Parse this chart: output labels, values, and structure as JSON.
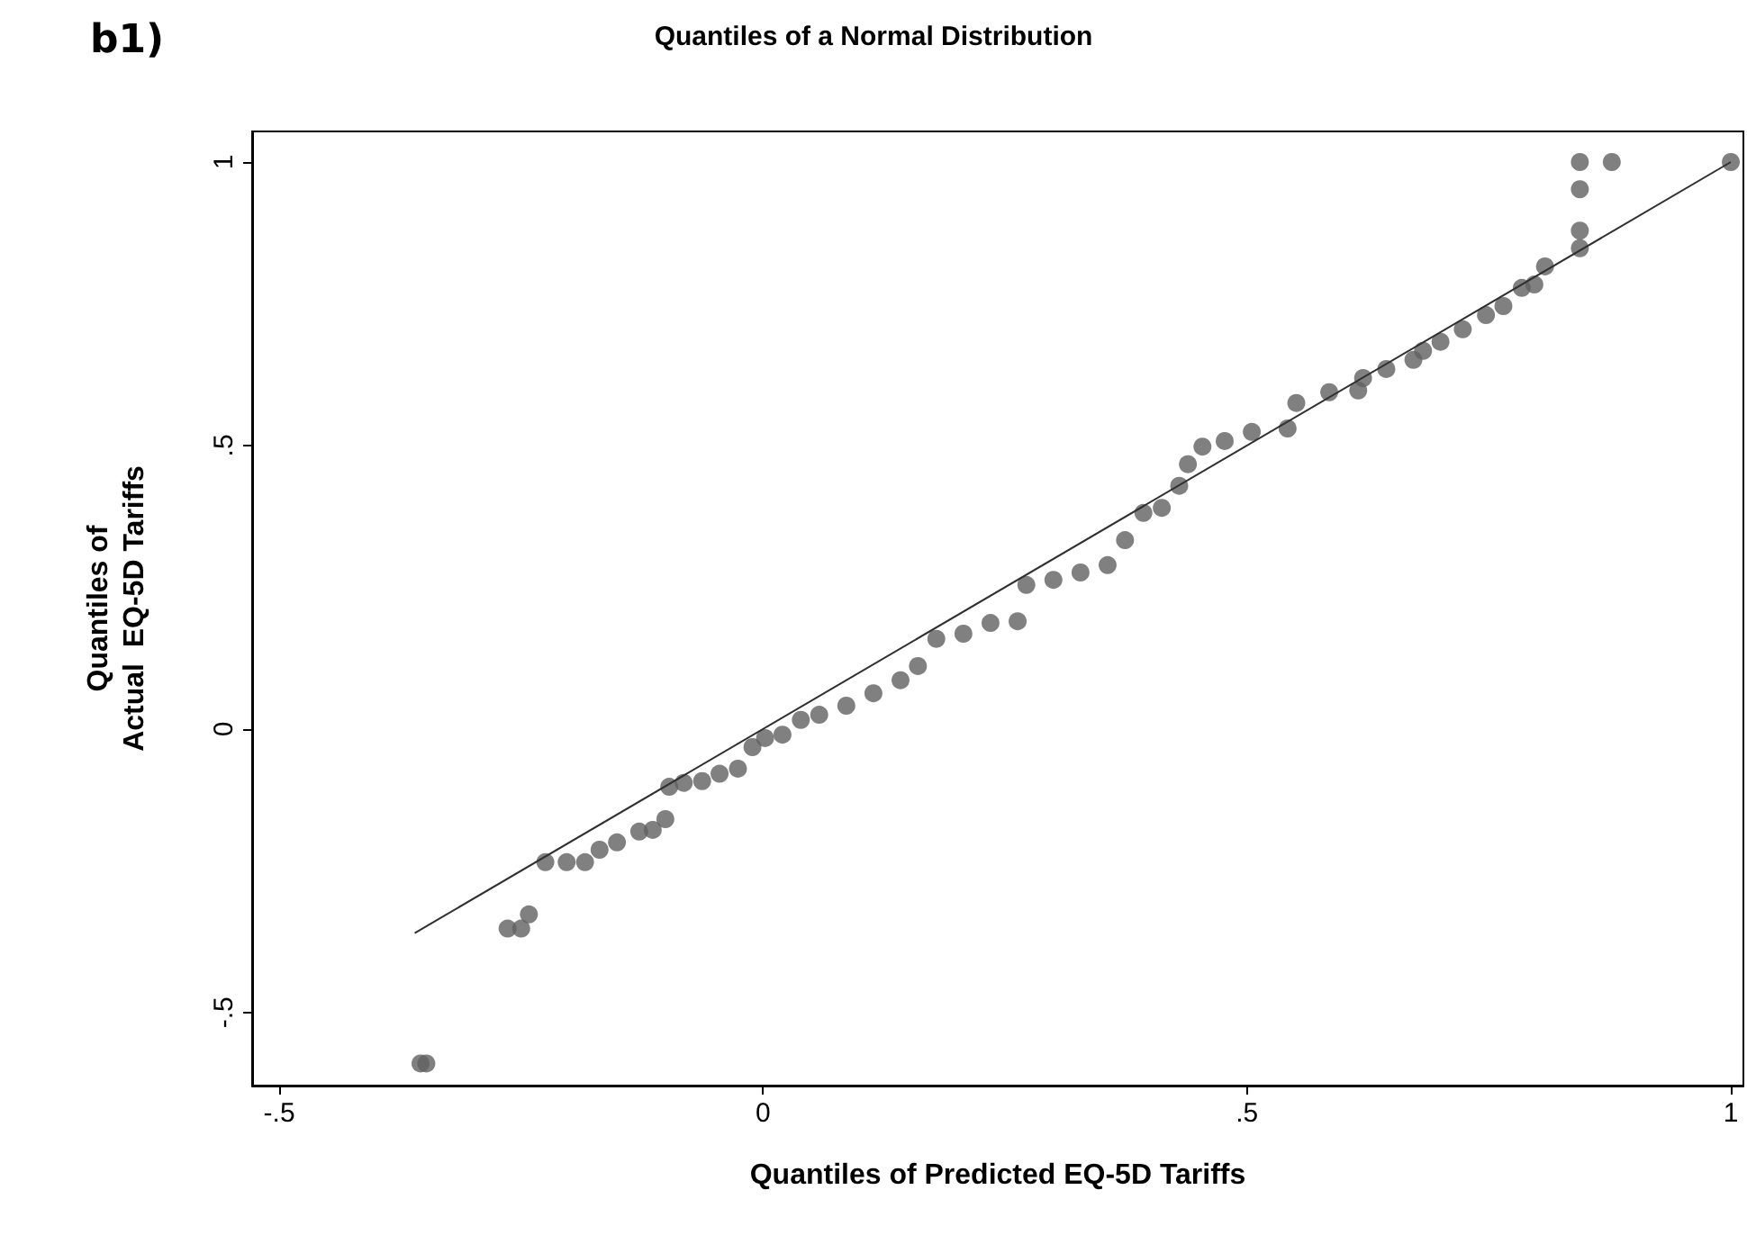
{
  "chart_data": {
    "type": "scatter",
    "title": "Quantiles of a Normal Distribution",
    "xlabel": "Quantiles of Predicted EQ-5D Tariffs",
    "ylabel": "Quantiles of\nActual  EQ-5D Tariffs",
    "annotations": [
      "b1)"
    ],
    "xlim": [
      -0.528,
      1.013
    ],
    "ylim": [
      -0.629,
      1.054
    ],
    "xticks": [
      {
        "value": -0.5,
        "label": "-.5"
      },
      0,
      {
        "value": 0.5,
        "label": ".5"
      },
      1
    ],
    "yticks": [
      {
        "value": -0.5,
        "label": "-.5"
      },
      0,
      {
        "value": 0.5,
        "label": ".5"
      },
      1
    ],
    "grid": false,
    "marker": "circle",
    "series": [
      {
        "color": "#606060",
        "x": [
          -0.354,
          -0.348,
          -0.264,
          -0.25,
          -0.242,
          -0.225,
          -0.203,
          -0.184,
          -0.169,
          -0.151,
          -0.128,
          -0.114,
          -0.101,
          -0.097,
          -0.082,
          -0.063,
          -0.045,
          -0.026,
          -0.011,
          0.002,
          0.02,
          0.039,
          0.058,
          0.086,
          0.114,
          0.142,
          0.16,
          0.179,
          0.207,
          0.235,
          0.263,
          0.272,
          0.3,
          0.328,
          0.356,
          0.374,
          0.393,
          0.412,
          0.43,
          0.439,
          0.454,
          0.477,
          0.505,
          0.542,
          0.551,
          0.585,
          0.615,
          0.62,
          0.644,
          0.672,
          0.682,
          0.7,
          0.723,
          0.747,
          0.765,
          0.784,
          0.797,
          0.808,
          0.844,
          0.844,
          0.844,
          0.844,
          0.877,
          1.0
        ],
        "values": [
          -0.59,
          -0.59,
          -0.352,
          -0.352,
          -0.327,
          -0.235,
          -0.235,
          -0.235,
          -0.213,
          -0.2,
          -0.181,
          -0.178,
          -0.159,
          -0.102,
          -0.095,
          -0.092,
          -0.079,
          -0.07,
          -0.032,
          -0.016,
          -0.01,
          0.016,
          0.025,
          0.041,
          0.063,
          0.086,
          0.111,
          0.159,
          0.168,
          0.187,
          0.19,
          0.254,
          0.263,
          0.276,
          0.289,
          0.333,
          0.381,
          0.39,
          0.429,
          0.467,
          0.498,
          0.508,
          0.524,
          0.53,
          0.575,
          0.594,
          0.597,
          0.619,
          0.635,
          0.651,
          0.667,
          0.683,
          0.705,
          0.73,
          0.746,
          0.778,
          0.784,
          0.816,
          0.848,
          0.879,
          0.952,
          1.0,
          1.0,
          1.0
        ]
      },
      {
        "type": "line",
        "color": "#303030",
        "marker": "none",
        "line_style": "solid",
        "x": [
          -0.36,
          1.0
        ],
        "values": [
          -0.36,
          1.0
        ]
      }
    ]
  }
}
